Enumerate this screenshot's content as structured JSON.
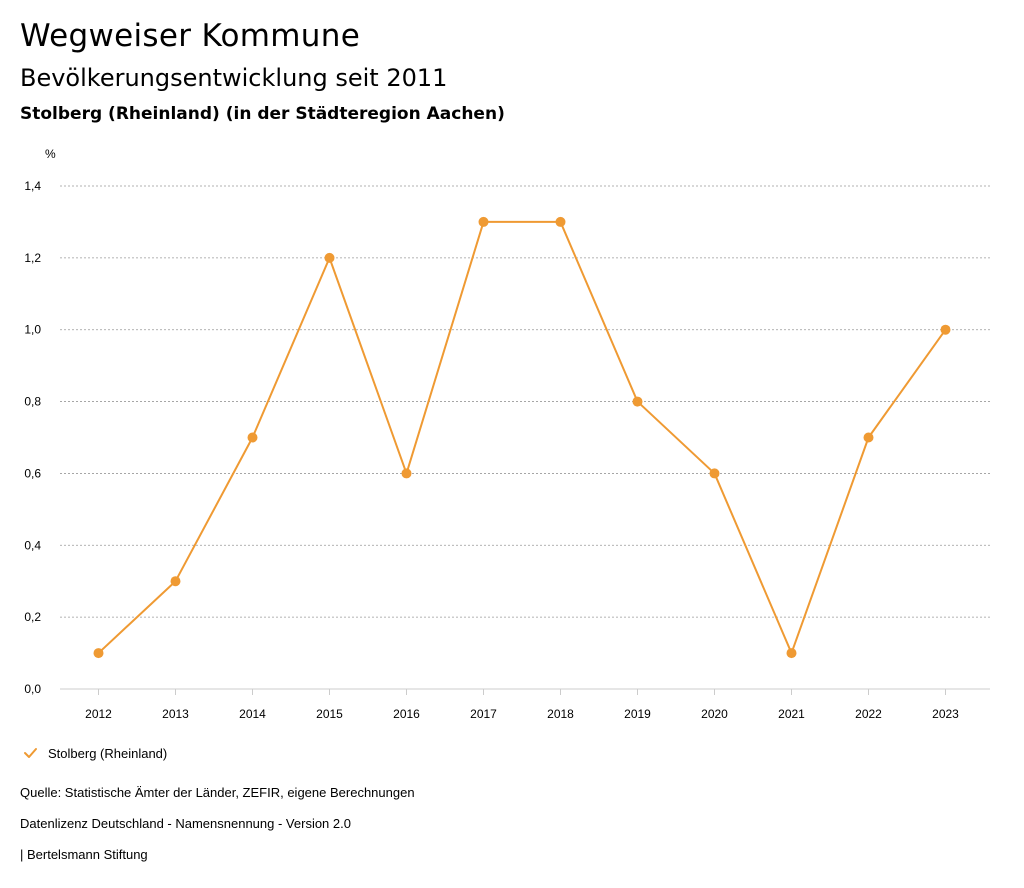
{
  "header": {
    "title": "Wegweiser Kommune",
    "subtitle": "Bevölkerungsentwicklung seit 2011",
    "region": "Stolberg (Rheinland) (in der Städteregion Aachen)"
  },
  "legend": {
    "label": "Stolberg (Rheinland)",
    "icon": "checkmark-icon"
  },
  "footer": {
    "source": "Quelle: Statistische Ämter der Länder, ZEFIR, eigene Berechnungen",
    "license": "Datenlizenz Deutschland - Namensnennung - Version 2.0",
    "publisher": "| Bertelsmann Stiftung"
  },
  "colors": {
    "series": "#ef9a33",
    "grid": "#999999"
  },
  "chart_data": {
    "type": "line",
    "title": "Bevölkerungsentwicklung seit 2011",
    "xlabel": "",
    "ylabel": "%",
    "categories": [
      "2012",
      "2013",
      "2014",
      "2015",
      "2016",
      "2017",
      "2018",
      "2019",
      "2020",
      "2021",
      "2022",
      "2023"
    ],
    "series": [
      {
        "name": "Stolberg (Rheinland)",
        "values": [
          0.1,
          0.3,
          0.7,
          1.2,
          0.6,
          1.3,
          1.3,
          0.8,
          0.6,
          0.1,
          0.7,
          1.0
        ]
      }
    ],
    "ylim": [
      0,
      1.4
    ],
    "yticks": [
      "0,0",
      "0,2",
      "0,4",
      "0,6",
      "0,8",
      "1,0",
      "1,2",
      "1,4"
    ],
    "grid": true,
    "legend_position": "bottom-left"
  }
}
